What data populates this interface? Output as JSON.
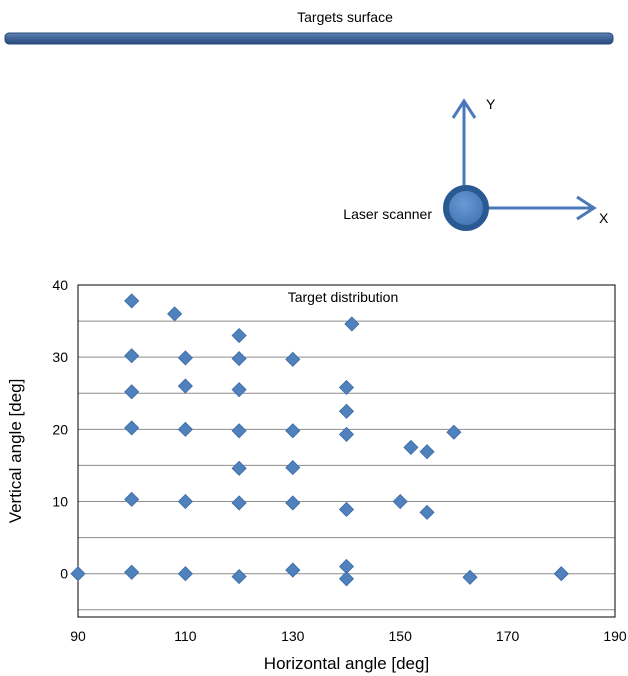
{
  "diagram": {
    "surface_label": "Targets surface",
    "scanner_label": "Laser scanner",
    "axis_x_label": "X",
    "axis_y_label": "Y",
    "colors": {
      "surface": "#3f6298",
      "surface_edge": "#2a4a7a",
      "arrow": "#4a78b8",
      "scanner_fill": "#4a7fc0",
      "scanner_ring": "#2b5a93"
    }
  },
  "chart_data": {
    "type": "scatter",
    "title": "Target distribution",
    "xlabel": "Horizontal angle [deg]",
    "ylabel": "Vertical angle [deg]",
    "xlim": [
      90,
      190
    ],
    "ylim": [
      -6,
      40
    ],
    "x_ticks": [
      90,
      110,
      130,
      150,
      170,
      190
    ],
    "y_ticks": [
      0,
      10,
      20,
      30,
      40
    ],
    "gridlines_y": [
      -5,
      0,
      5,
      10,
      15,
      20,
      25,
      30,
      35
    ],
    "grid": true,
    "marker": "diamond",
    "color": "#4f81bd",
    "points": [
      {
        "x": 90,
        "y": 0
      },
      {
        "x": 100,
        "y": 37.8
      },
      {
        "x": 100,
        "y": 30.2
      },
      {
        "x": 100,
        "y": 25.2
      },
      {
        "x": 100,
        "y": 20.2
      },
      {
        "x": 100,
        "y": 10.3
      },
      {
        "x": 100,
        "y": 0.2
      },
      {
        "x": 108,
        "y": 36
      },
      {
        "x": 110,
        "y": 29.9
      },
      {
        "x": 110,
        "y": 26
      },
      {
        "x": 110,
        "y": 20
      },
      {
        "x": 110,
        "y": 10
      },
      {
        "x": 110,
        "y": 0
      },
      {
        "x": 120,
        "y": 33
      },
      {
        "x": 120,
        "y": 29.8
      },
      {
        "x": 120,
        "y": 25.5
      },
      {
        "x": 120,
        "y": 19.8
      },
      {
        "x": 120,
        "y": 14.6
      },
      {
        "x": 120,
        "y": 9.8
      },
      {
        "x": 120,
        "y": -0.4
      },
      {
        "x": 130,
        "y": 29.7
      },
      {
        "x": 130,
        "y": 19.8
      },
      {
        "x": 130,
        "y": 14.7
      },
      {
        "x": 130,
        "y": 9.8
      },
      {
        "x": 130,
        "y": 0.5
      },
      {
        "x": 140,
        "y": 25.8
      },
      {
        "x": 140,
        "y": 22.5
      },
      {
        "x": 140,
        "y": 19.3
      },
      {
        "x": 140,
        "y": 8.9
      },
      {
        "x": 140,
        "y": 1
      },
      {
        "x": 140,
        "y": -0.7
      },
      {
        "x": 141,
        "y": 34.6
      },
      {
        "x": 150,
        "y": 10
      },
      {
        "x": 152,
        "y": 17.5
      },
      {
        "x": 155,
        "y": 16.9
      },
      {
        "x": 155,
        "y": 8.5
      },
      {
        "x": 160,
        "y": 19.6
      },
      {
        "x": 163,
        "y": -0.5
      },
      {
        "x": 180,
        "y": 0
      }
    ]
  }
}
